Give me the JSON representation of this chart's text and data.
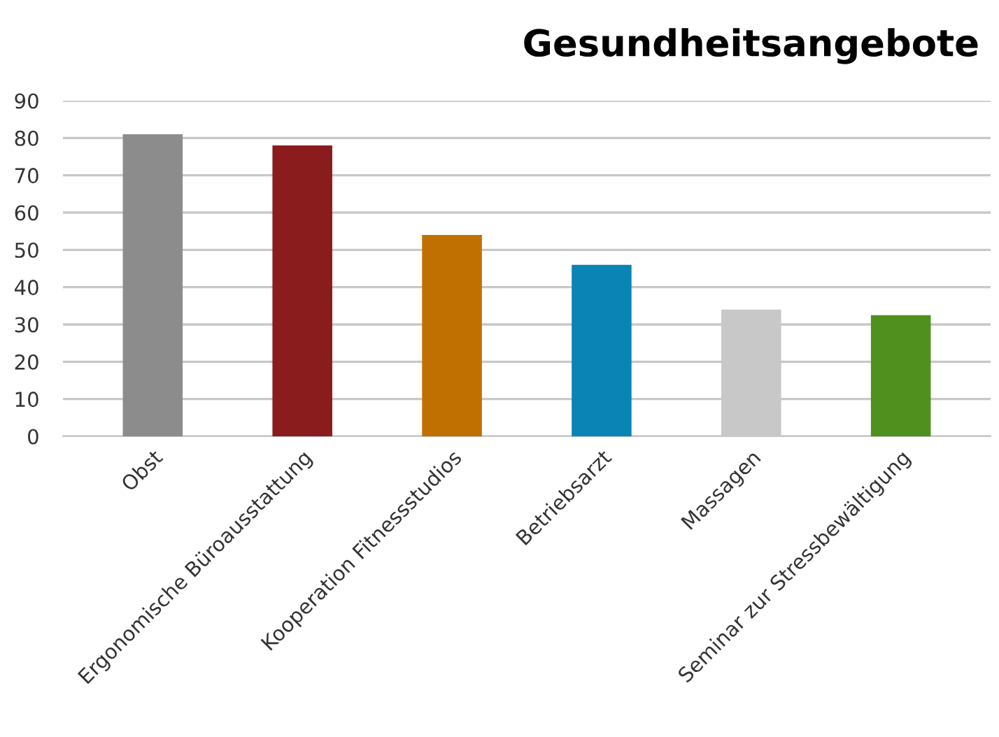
{
  "chart_data": {
    "type": "bar",
    "title": "Gesundheitsangebote",
    "categories": [
      "Obst",
      "Ergonomische Büroausstattung",
      "Kooperation Fitnessstudios",
      "Betriebsarzt",
      "Massagen",
      "Seminar zur Stressbewältigung"
    ],
    "values": [
      81,
      78,
      54,
      46,
      34,
      32.5
    ],
    "colors": [
      "#8c8c8c",
      "#8b1c1e",
      "#c07000",
      "#0a84b4",
      "#c8c8c8",
      "#50901f"
    ],
    "ylim": [
      0,
      90
    ],
    "yticks": [
      0,
      10,
      20,
      30,
      40,
      50,
      60,
      70,
      80,
      90
    ],
    "grid": "y",
    "legend": false
  }
}
